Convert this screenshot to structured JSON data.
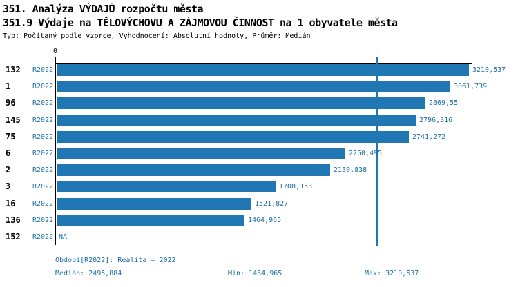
{
  "header": {
    "title1": "351. Analýza VÝDAJŮ rozpočtu města",
    "title2": "351.9 Výdaje na TĚLOVÝCHOVU A ZÁJMOVOU ČINNOST na 1 obyvatele města",
    "meta": "Typ: Počítaný podle vzorce, Vyhodnocení: Absolutní hodnoty, Průměr: Medián"
  },
  "chart_data": {
    "type": "bar",
    "orientation": "horizontal",
    "title": "351.9 Výdaje na TĚLOVÝCHOVU A ZÁJMOVOU ČINNOST na 1 obyvatele města",
    "axis_zero_label": "0",
    "xlim": [
      0,
      3230
    ],
    "grid": false,
    "median_value": 2495.884,
    "rows": [
      {
        "id": "132",
        "period": "R2022",
        "value": 3210.537,
        "value_label": "3210,537"
      },
      {
        "id": "1",
        "period": "R2022",
        "value": 3061.739,
        "value_label": "3061,739"
      },
      {
        "id": "96",
        "period": "R2022",
        "value": 2869.55,
        "value_label": "2869,55"
      },
      {
        "id": "145",
        "period": "R2022",
        "value": 2796.316,
        "value_label": "2796,316"
      },
      {
        "id": "75",
        "period": "R2022",
        "value": 2741.272,
        "value_label": "2741,272"
      },
      {
        "id": "6",
        "period": "R2022",
        "value": 2250.495,
        "value_label": "2250,495"
      },
      {
        "id": "2",
        "period": "R2022",
        "value": 2130.838,
        "value_label": "2130,838"
      },
      {
        "id": "3",
        "period": "R2022",
        "value": 1708.153,
        "value_label": "1708,153"
      },
      {
        "id": "16",
        "period": "R2022",
        "value": 1521.827,
        "value_label": "1521,827"
      },
      {
        "id": "136",
        "period": "R2022",
        "value": 1464.965,
        "value_label": "1464,965"
      },
      {
        "id": "152",
        "period": "R2022",
        "value": null,
        "value_label": "NA"
      }
    ]
  },
  "footer": {
    "period_line": "Období[R2022]: Realita – 2022",
    "median": "Medián: 2495,884",
    "min": "Min: 1464,965",
    "max": "Max: 3210,537"
  },
  "colors": {
    "bar": "#2077b4",
    "median_line": "#2077b4",
    "blue_text": "#1f6fa9",
    "axis": "#000000"
  }
}
